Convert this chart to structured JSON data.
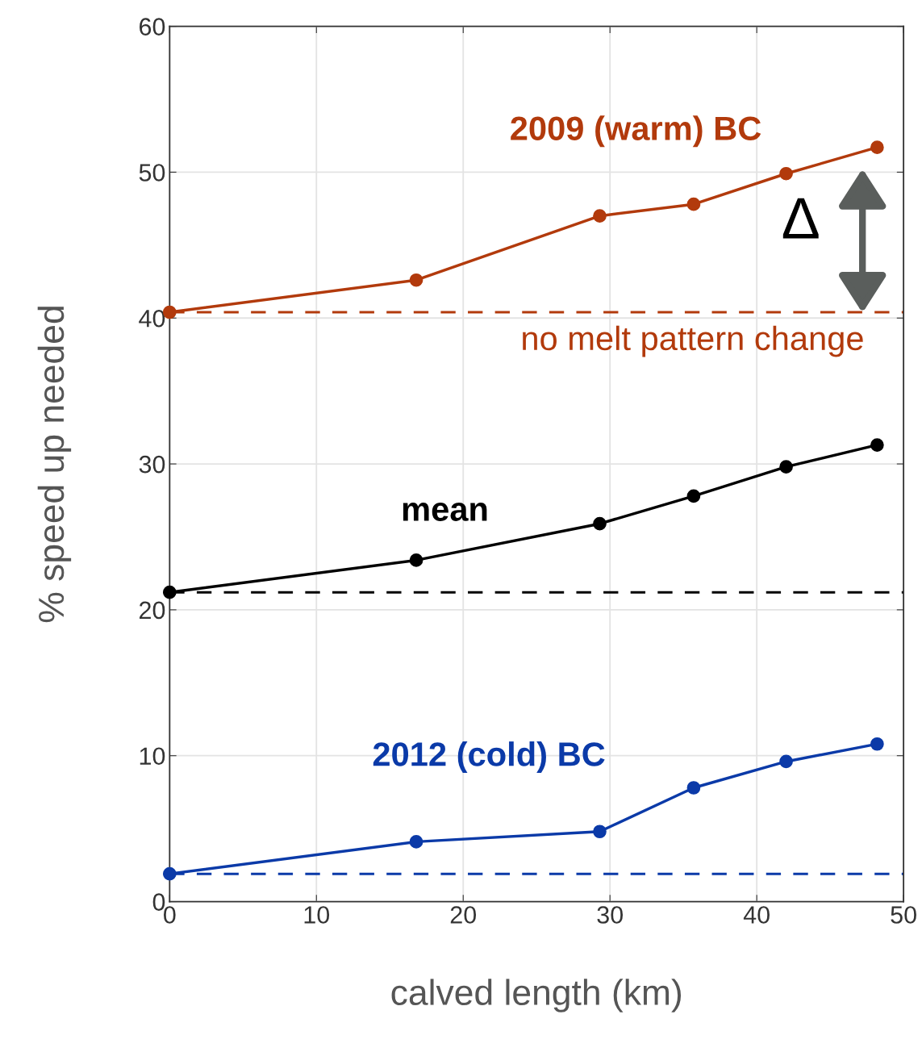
{
  "chart_data": {
    "type": "line",
    "xlabel": "calved length (km)",
    "ylabel": "% speed up needed",
    "x": [
      0,
      16.8,
      29.3,
      35.7,
      42.0,
      48.2
    ],
    "series": [
      {
        "name": "2009 (warm) BC",
        "color": "#b23a0c",
        "values": [
          40.4,
          42.6,
          47.0,
          47.8,
          49.9,
          51.7
        ]
      },
      {
        "name": "mean",
        "color": "#000000",
        "values": [
          21.2,
          23.4,
          25.9,
          27.8,
          29.8,
          31.3
        ]
      },
      {
        "name": "2012 (cold) BC",
        "color": "#0b3aa8",
        "values": [
          1.9,
          4.1,
          4.8,
          7.8,
          9.6,
          10.8
        ]
      }
    ],
    "ref_lines": [
      {
        "axis": "y",
        "value": 40.4,
        "label": "no melt pattern change",
        "color": "#b23a0c",
        "line_style": "dashed"
      },
      {
        "axis": "y",
        "value": 21.2,
        "color": "#000000",
        "line_style": "dashed"
      },
      {
        "axis": "y",
        "value": 1.9,
        "color": "#0b3aa8",
        "line_style": "dashed"
      }
    ],
    "annotations": [
      "Δ"
    ],
    "xlim": [
      0,
      50
    ],
    "xticks": [
      0,
      10,
      20,
      30,
      40,
      50
    ],
    "ylim": [
      0,
      60
    ],
    "yticks": [
      0,
      10,
      20,
      30,
      40,
      50,
      60
    ],
    "grid": true,
    "marker": "circle",
    "line_style": "solid",
    "legend": false
  }
}
